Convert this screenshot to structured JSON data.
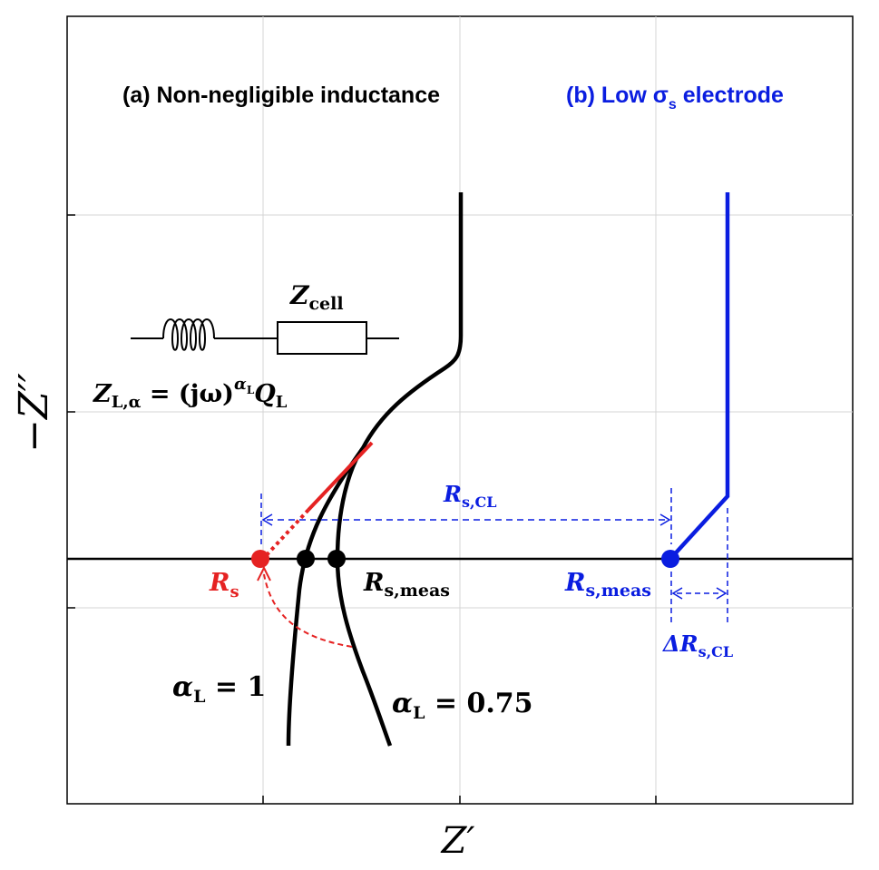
{
  "axes": {
    "xlabel": "Z′",
    "ylabel": "−Z′′"
  },
  "panels": {
    "a_title": "(a) Non-negligible inductance",
    "b_title_main": "(b) Low σ",
    "b_title_sub": "s",
    "b_title_rest": " electrode"
  },
  "circuit": {
    "zcell_main": "Z",
    "zcell_sub": "cell",
    "zl_main": "Z",
    "zl_sub": "L,α",
    "zl_eq": " = (jω)",
    "zl_exp_main": "α",
    "zl_exp_sub": "L",
    "zl_q": "Q",
    "zl_q_sub": "L"
  },
  "labels": {
    "rs_main": "R",
    "rs_sub": "s",
    "rsmeas_a_main": "R",
    "rsmeas_a_sub": "s,meas",
    "rsmeas_b_main": "R",
    "rsmeas_b_sub": "s,meas",
    "rscl_main": "R",
    "rscl_sub": "s,CL",
    "drscl_main": "ΔR",
    "drscl_sub": "s,CL",
    "alpha1_main": "α",
    "alpha1_sub": "L",
    "alpha1_val": " = 1",
    "alpha075_main": "α",
    "alpha075_sub": "L",
    "alpha075_val": " = 0.75"
  },
  "colors": {
    "black": "#000000",
    "red": "#e52222",
    "blue": "#0a1de0",
    "grid": "#d4d4d4"
  }
}
